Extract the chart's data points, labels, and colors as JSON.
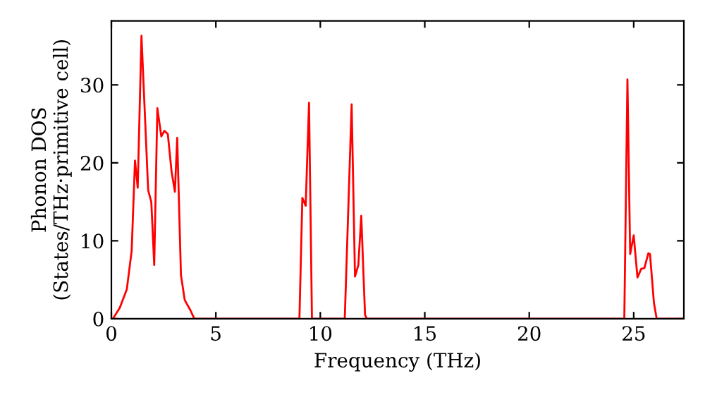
{
  "chart_data": {
    "type": "line",
    "xlabel": "Frequency (THz)",
    "ylabel": "Phonon DOS\n(States/THz·primitive cell)",
    "xlim": [
      0,
      27.4
    ],
    "ylim": [
      0,
      38.2
    ],
    "xticks": [
      0,
      5,
      10,
      15,
      20,
      25
    ],
    "yticks": [
      0,
      10,
      20,
      30
    ],
    "grid": false,
    "legend": false,
    "marker": "none",
    "line_style": "solid",
    "series": [
      {
        "color": "#ff0000",
        "x": [
          0,
          0.07,
          0.4,
          0.74,
          0.97,
          1.13,
          1.26,
          1.44,
          1.76,
          1.91,
          2.05,
          2.2,
          2.39,
          2.54,
          2.7,
          2.88,
          3.04,
          3.15,
          3.33,
          3.51,
          3.78,
          3.97,
          9.0,
          9.14,
          9.3,
          9.46,
          9.6,
          11.17,
          11.5,
          11.66,
          11.82,
          11.96,
          12.14,
          12.23,
          24.55,
          24.7,
          24.83,
          25.0,
          25.18,
          25.36,
          25.51,
          25.7,
          25.78,
          25.97,
          26.1,
          27.4
        ],
        "values": [
          0,
          0,
          1.4,
          3.8,
          8.7,
          20.3,
          16.8,
          36.3,
          16.5,
          15,
          6.9,
          27,
          23.4,
          24.1,
          23.7,
          18.9,
          16.3,
          23.2,
          5.6,
          2.4,
          1.1,
          0,
          0,
          15.5,
          14.5,
          27.7,
          0,
          0,
          27.5,
          5.4,
          6.9,
          13.2,
          0.5,
          0,
          0,
          30.7,
          8.3,
          10.7,
          5.3,
          6.4,
          6.5,
          8.4,
          8.3,
          2,
          0,
          0
        ]
      }
    ]
  }
}
